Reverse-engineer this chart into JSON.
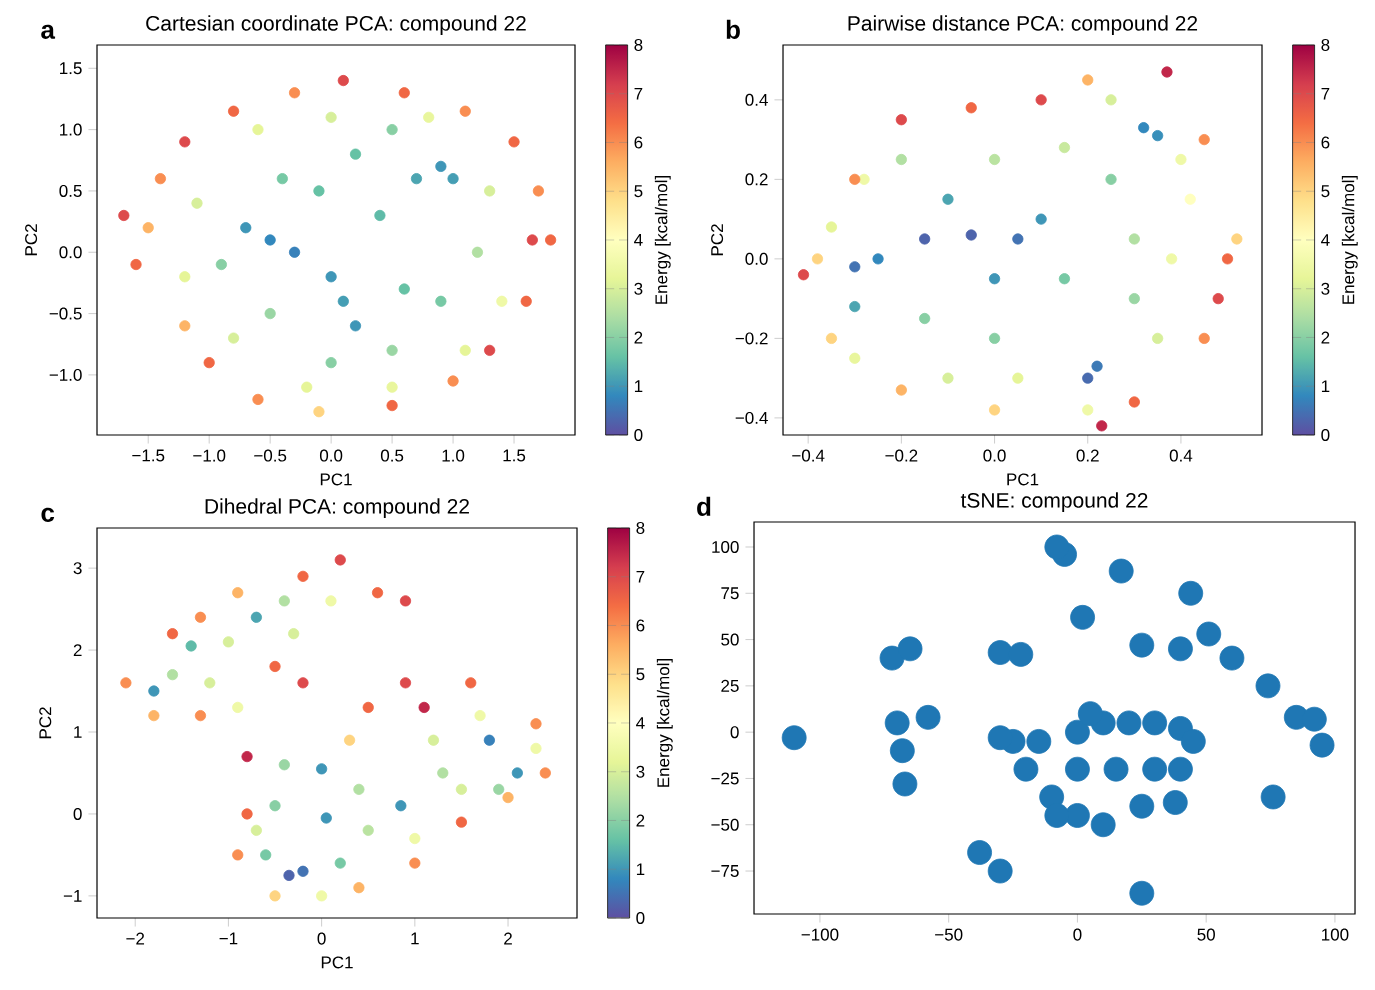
{
  "chart_data": [
    {
      "type": "scatter",
      "title": "Cartesian coordinate PCA: compound 22",
      "xlabel": "PC1",
      "ylabel": "PC2",
      "clabel": "Energy [kcal/mol]",
      "annotations": [
        "a"
      ],
      "marker": "circle",
      "xlim": [
        -1.92,
        2.0
      ],
      "ylim": [
        -1.49,
        1.69
      ],
      "xticks": [
        {
          "value": -1.5,
          "label": "−1.5"
        },
        {
          "value": -1.0,
          "label": "−1.0"
        },
        {
          "value": -0.5,
          "label": "−0.5"
        },
        {
          "value": 0,
          "label": "0.0"
        },
        0.5,
        {
          "value": 1.0,
          "label": "1.0"
        },
        1.5
      ],
      "yticks": [
        {
          "value": -1.0,
          "label": "−1.0"
        },
        {
          "value": -0.5,
          "label": "−0.5"
        },
        {
          "value": 0,
          "label": "0.0"
        },
        0.5,
        {
          "value": 1.0,
          "label": "1.0"
        },
        1.5
      ],
      "clim": [
        0,
        8
      ],
      "cticks": [
        0,
        1,
        2,
        3,
        4,
        5,
        6,
        7,
        8
      ],
      "x": [
        -0.5,
        -0.3,
        -0.7,
        0.0,
        0.2,
        0.1,
        0.9,
        0.7,
        1.0,
        0.4,
        0.6,
        0.9,
        -0.1,
        -0.4,
        0.2,
        0.5,
        -0.9,
        -0.5,
        0.0,
        0.5,
        1.2,
        1.3,
        -1.1,
        -1.2,
        -0.8,
        -0.2,
        0.5,
        1.1,
        -0.6,
        0.0,
        0.8,
        1.4,
        -1.5,
        -1.6,
        -1.4,
        -1.2,
        -1.0,
        -0.6,
        -0.1,
        0.5,
        1.0,
        1.3,
        1.6,
        1.65,
        1.7,
        1.5,
        1.1,
        0.6,
        0.1,
        -0.3,
        -0.8,
        -1.2,
        -1.7,
        1.8
      ],
      "values": [
        0.1,
        0.0,
        0.2,
        -0.2,
        -0.6,
        -0.4,
        0.7,
        0.6,
        0.6,
        0.3,
        -0.3,
        -0.4,
        0.5,
        0.6,
        0.8,
        1.0,
        -0.1,
        -0.5,
        -0.9,
        -0.8,
        0.0,
        0.5,
        0.4,
        -0.2,
        -0.7,
        -1.1,
        -1.1,
        -0.8,
        1.0,
        1.1,
        1.1,
        -0.4,
        0.2,
        -0.1,
        0.6,
        -0.6,
        -0.9,
        -1.2,
        -1.3,
        -1.25,
        -1.05,
        -0.8,
        -0.4,
        0.1,
        0.5,
        0.9,
        1.15,
        1.3,
        1.4,
        1.3,
        1.15,
        0.9,
        0.3,
        0.1
      ],
      "cvalues": [
        0.8,
        0.7,
        1.0,
        1.0,
        1.0,
        1.1,
        1.0,
        1.2,
        1.1,
        1.5,
        1.6,
        1.8,
        1.6,
        1.8,
        1.6,
        2.0,
        2.0,
        2.2,
        2.0,
        2.2,
        2.5,
        3.0,
        3.0,
        3.2,
        3.0,
        3.2,
        3.3,
        3.2,
        3.2,
        3.0,
        3.3,
        3.5,
        5.5,
        6.5,
        6.0,
        5.5,
        6.5,
        6.0,
        5.0,
        6.5,
        6.0,
        7.0,
        6.5,
        7.0,
        6.0,
        6.5,
        6.0,
        6.5,
        7.0,
        6.0,
        6.5,
        7.0,
        7.0,
        6.5
      ]
    },
    {
      "type": "scatter",
      "title": "Pairwise distance PCA: compound 22",
      "xlabel": "PC1",
      "ylabel": "PC2",
      "clabel": "Energy [kcal/mol]",
      "annotations": [
        "b"
      ],
      "marker": "circle",
      "xlim": [
        -0.454,
        0.574
      ],
      "ylim": [
        -0.443,
        0.538
      ],
      "xticks": [
        {
          "value": -0.4,
          "label": "−0.4"
        },
        {
          "value": -0.2,
          "label": "−0.2"
        },
        {
          "value": 0,
          "label": "0.0"
        },
        0.2,
        0.4
      ],
      "yticks": [
        {
          "value": -0.4,
          "label": "−0.4"
        },
        {
          "value": -0.2,
          "label": "−0.2"
        },
        {
          "value": 0,
          "label": "0.0"
        },
        0.2,
        0.4
      ],
      "clim": [
        0,
        8
      ],
      "cticks": [
        0,
        1,
        2,
        3,
        4,
        5,
        6,
        7,
        8
      ],
      "x": [
        -0.15,
        -0.05,
        0.05,
        -0.3,
        -0.25,
        0.2,
        0.22,
        0.32,
        0.35,
        0.1,
        -0.1,
        0.0,
        -0.3,
        0.15,
        -0.15,
        0.0,
        0.25,
        0.3,
        0.3,
        -0.2,
        0.0,
        0.15,
        -0.1,
        0.05,
        0.35,
        0.38,
        -0.35,
        -0.28,
        0.4,
        0.25,
        -0.3,
        0.2,
        -0.38,
        -0.41,
        -0.3,
        -0.2,
        -0.05,
        0.1,
        0.2,
        0.37,
        0.45,
        0.5,
        0.48,
        0.45,
        0.3,
        0.23,
        0.0,
        -0.2,
        -0.35,
        0.52,
        0.42
      ],
      "values": [
        0.05,
        0.06,
        0.05,
        -0.02,
        0.0,
        -0.3,
        -0.27,
        0.33,
        0.31,
        0.1,
        0.15,
        -0.05,
        -0.12,
        -0.05,
        -0.15,
        -0.2,
        0.2,
        0.05,
        -0.1,
        0.25,
        0.25,
        0.28,
        -0.3,
        -0.3,
        -0.2,
        0.0,
        0.08,
        0.2,
        0.25,
        0.4,
        -0.25,
        -0.38,
        0.0,
        -0.04,
        0.2,
        0.35,
        0.38,
        0.4,
        0.45,
        0.47,
        0.3,
        0.0,
        -0.1,
        -0.2,
        -0.36,
        -0.42,
        -0.38,
        -0.33,
        -0.2,
        0.05,
        0.15
      ],
      "cvalues": [
        0.3,
        0.3,
        0.5,
        0.5,
        0.8,
        0.4,
        0.6,
        0.8,
        0.9,
        1.0,
        1.2,
        1.0,
        1.2,
        1.8,
        2.0,
        2.0,
        2.0,
        2.5,
        2.2,
        2.5,
        2.6,
        2.8,
        3.0,
        3.2,
        3.0,
        3.5,
        3.2,
        3.5,
        3.5,
        3.0,
        3.3,
        3.5,
        5.0,
        7.0,
        6.0,
        7.0,
        6.5,
        7.0,
        5.5,
        7.5,
        6.0,
        6.5,
        7.0,
        6.0,
        6.5,
        7.5,
        5.0,
        5.5,
        5.0,
        5.0,
        4.0
      ]
    },
    {
      "type": "scatter",
      "title": "Dihedral PCA: compound 22",
      "xlabel": "PC1",
      "ylabel": "PC2",
      "clabel": "Energy [kcal/mol]",
      "annotations": [
        "c"
      ],
      "marker": "circle",
      "xlim": [
        -2.41,
        2.74
      ],
      "ylim": [
        -1.27,
        3.49
      ],
      "xticks": [
        {
          "value": -2,
          "label": "−2"
        },
        {
          "value": -1,
          "label": "−1"
        },
        0,
        1,
        2
      ],
      "yticks": [
        {
          "value": -1,
          "label": "−1"
        },
        0,
        1,
        2,
        3
      ],
      "clim": [
        0,
        8
      ],
      "cticks": [
        0,
        1,
        2,
        3,
        4,
        5,
        6,
        7,
        8
      ],
      "x": [
        -0.35,
        -0.2,
        0.05,
        0.0,
        0.85,
        1.8,
        2.1,
        -1.8,
        -1.4,
        -0.7,
        -0.6,
        0.2,
        -0.5,
        -0.4,
        0.4,
        0.5,
        1.3,
        1.5,
        1.9,
        1.2,
        -1.6,
        -1.2,
        -0.9,
        -0.4,
        -0.3,
        -1.0,
        0.1,
        -0.7,
        1.0,
        0.0,
        2.3,
        1.7,
        -2.1,
        -1.6,
        -1.3,
        -0.9,
        -0.2,
        0.2,
        0.6,
        0.9,
        -0.5,
        -0.2,
        -0.8,
        -0.8,
        -0.9,
        -0.5,
        0.4,
        1.0,
        1.5,
        2.0,
        2.4,
        2.3,
        1.6,
        0.9,
        0.5,
        1.1,
        -1.8,
        -1.3,
        0.3
      ],
      "values": [
        -0.75,
        -0.7,
        -0.05,
        0.55,
        0.1,
        0.9,
        0.5,
        1.5,
        2.05,
        2.4,
        -0.5,
        -0.6,
        0.1,
        0.6,
        0.3,
        -0.2,
        0.5,
        0.3,
        0.3,
        0.9,
        1.7,
        1.6,
        1.3,
        2.6,
        2.2,
        2.1,
        2.6,
        -0.2,
        -0.3,
        -1.0,
        0.8,
        1.2,
        1.6,
        2.2,
        2.4,
        2.7,
        2.9,
        3.1,
        2.7,
        2.6,
        1.8,
        1.6,
        0.7,
        0.0,
        -0.5,
        -1.0,
        -0.9,
        -0.6,
        -0.1,
        0.2,
        0.5,
        1.1,
        1.6,
        1.6,
        1.3,
        1.3,
        1.2,
        1.2,
        0.9
      ],
      "cvalues": [
        0.3,
        0.5,
        1.0,
        1.0,
        1.0,
        0.7,
        1.0,
        1.0,
        1.5,
        1.2,
        1.8,
        1.8,
        2.0,
        2.2,
        2.5,
        2.6,
        2.5,
        3.0,
        2.2,
        3.0,
        2.5,
        3.0,
        3.5,
        2.5,
        3.0,
        3.0,
        3.5,
        3.0,
        3.5,
        3.5,
        3.5,
        3.5,
        6.0,
        6.5,
        6.0,
        5.5,
        6.5,
        7.0,
        6.5,
        7.0,
        6.5,
        7.0,
        7.5,
        6.5,
        6.0,
        5.0,
        5.5,
        6.0,
        6.5,
        5.5,
        6.0,
        6.0,
        6.5,
        7.0,
        6.5,
        7.5,
        5.5,
        6.0,
        5.0
      ]
    },
    {
      "type": "scatter",
      "title": "tSNE: compound 22",
      "annotations": [
        "d"
      ],
      "marker": "circle",
      "color": "#1f77b4",
      "xlim": [
        -125.6,
        107.8
      ],
      "ylim": [
        -98.2,
        113.5
      ],
      "xticks": [
        {
          "value": -100,
          "label": "−100"
        },
        {
          "value": -50,
          "label": "−50"
        },
        0,
        50,
        100
      ],
      "yticks": [
        {
          "value": -75,
          "label": "−75"
        },
        {
          "value": -50,
          "label": "−50"
        },
        {
          "value": -25,
          "label": "−25"
        },
        0,
        25,
        50,
        75,
        100
      ],
      "x": [
        -110,
        -68,
        -70,
        -67,
        -58,
        -72,
        -65,
        -30,
        -22,
        -38,
        -30,
        -5,
        -8,
        17,
        2,
        25,
        40,
        44,
        51,
        60,
        74,
        85,
        92,
        95,
        76,
        25,
        0,
        10,
        20,
        30,
        40,
        45,
        -20,
        -15,
        0,
        15,
        30,
        40,
        -10,
        0,
        10,
        25,
        38,
        5,
        -25,
        -8,
        -30
      ],
      "values": [
        -3,
        -10,
        5,
        -28,
        8,
        40,
        45,
        43,
        42,
        -65,
        -75,
        96,
        100,
        87,
        62,
        47,
        45,
        75,
        53,
        40,
        25,
        8,
        7,
        -7,
        -35,
        -87,
        0,
        5,
        5,
        5,
        2,
        -5,
        -20,
        -5,
        -20,
        -20,
        -20,
        -20,
        -35,
        -45,
        -50,
        -40,
        -38,
        10,
        -5,
        -45,
        -3
      ]
    }
  ]
}
